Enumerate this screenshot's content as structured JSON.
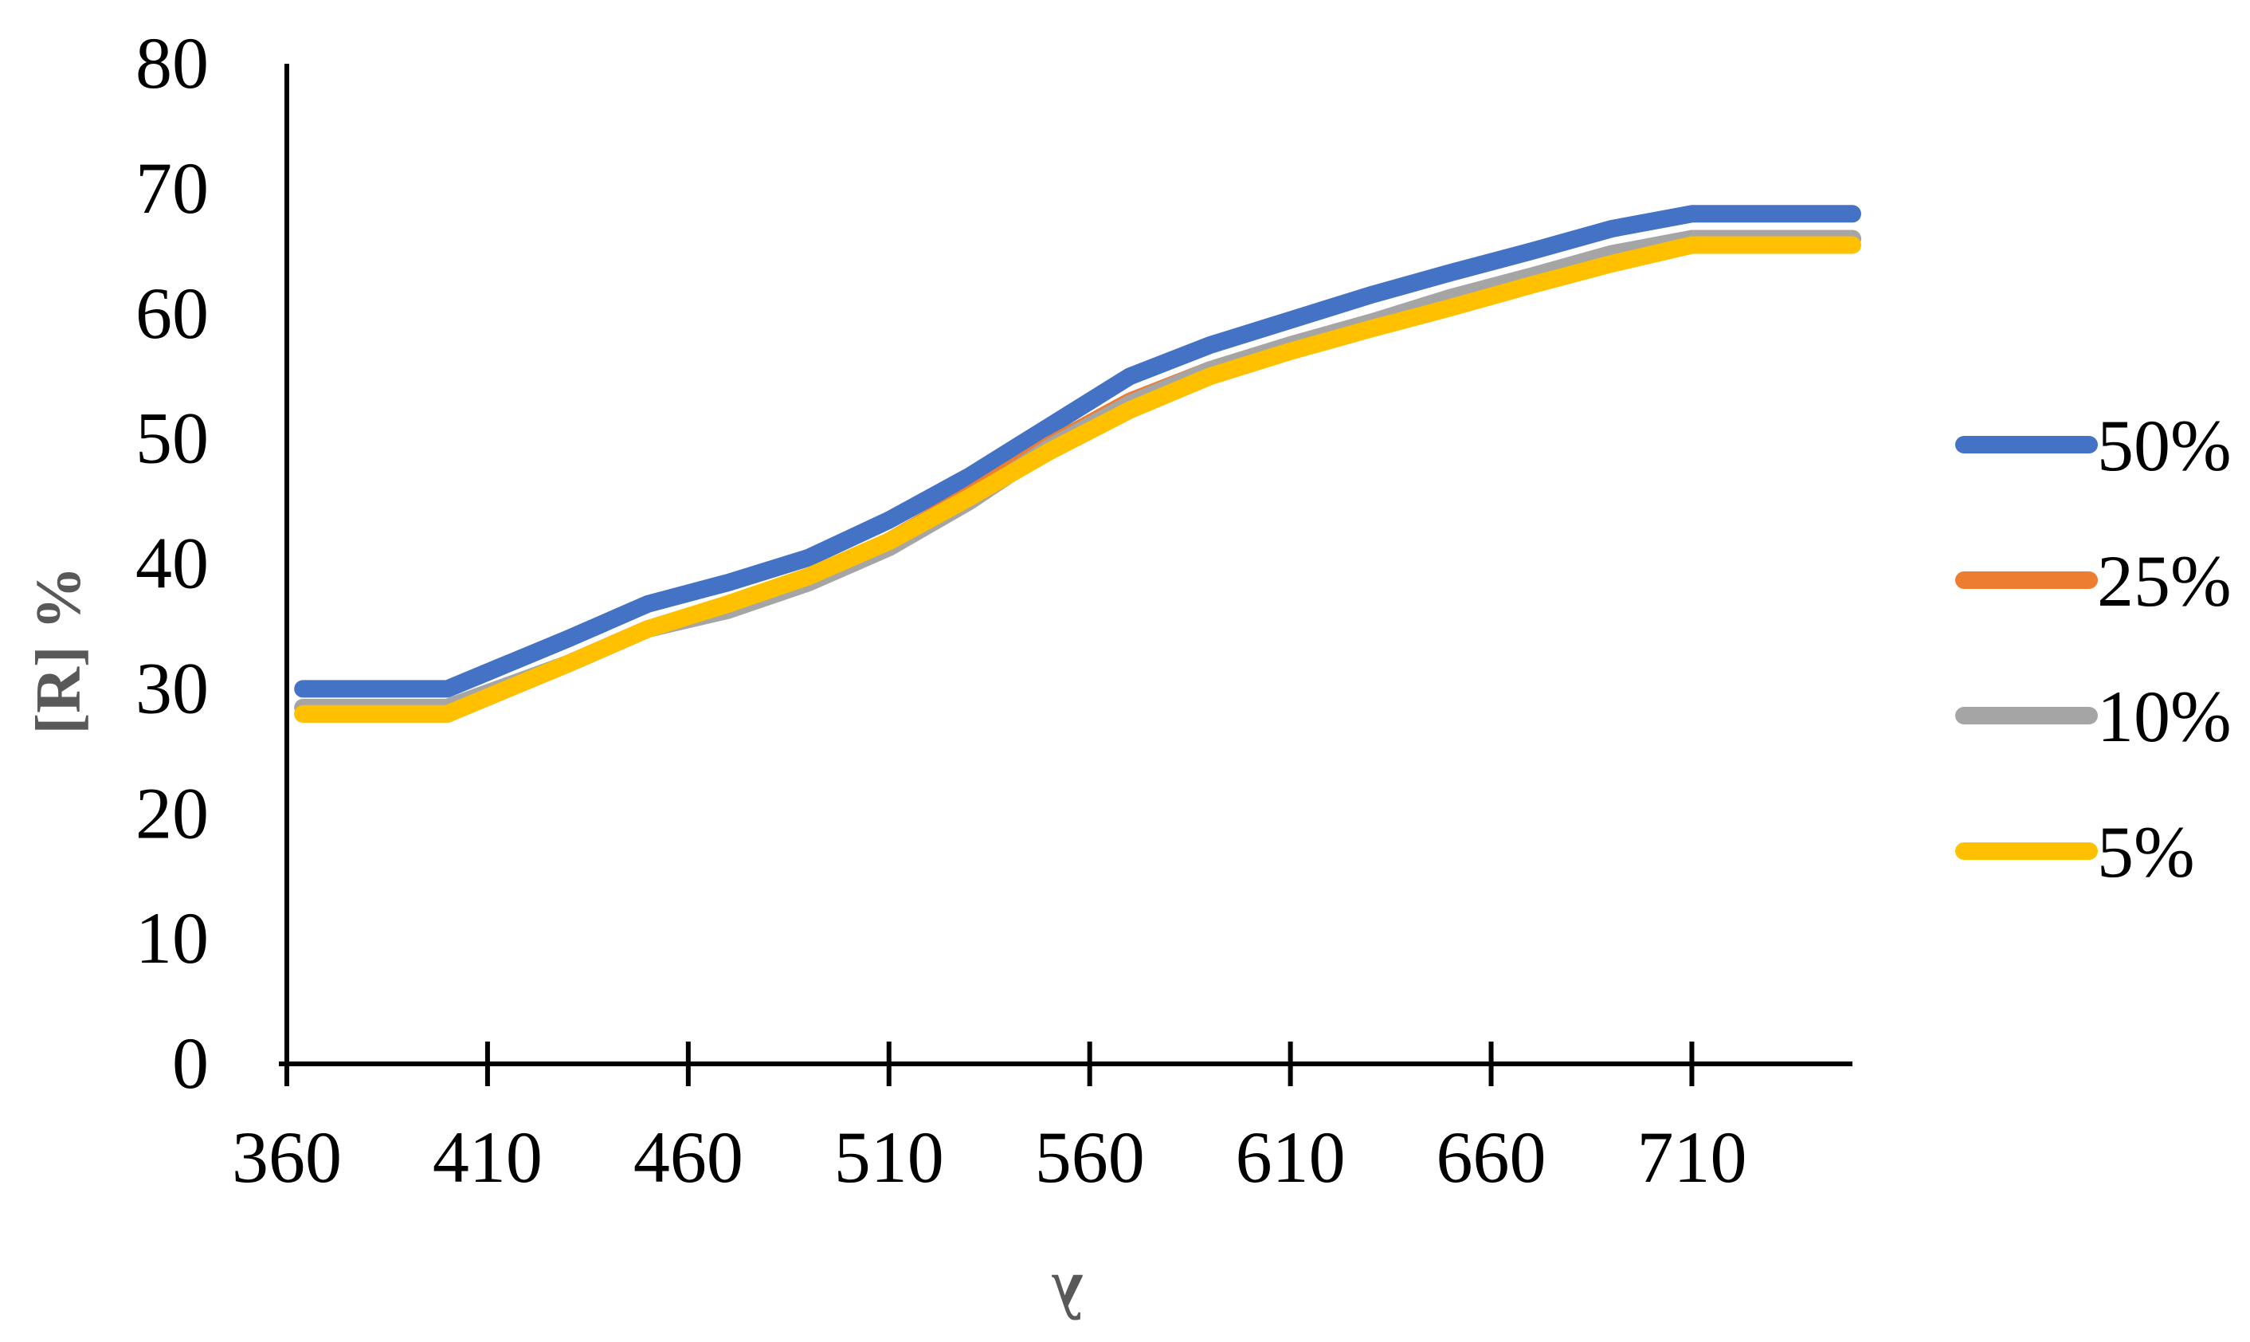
{
  "chart_data": {
    "type": "line",
    "title": "",
    "xlabel": "λ",
    "ylabel": "[R] %",
    "xlim": [
      360,
      750
    ],
    "ylim": [
      0,
      80
    ],
    "x_ticks": [
      360,
      410,
      460,
      510,
      560,
      610,
      660,
      710
    ],
    "y_ticks": [
      0,
      10,
      20,
      30,
      40,
      50,
      60,
      70,
      80
    ],
    "x_tick_labels": [
      "360",
      "410",
      "460",
      "510",
      "560",
      "610",
      "660",
      "710"
    ],
    "y_tick_labels": [
      "0",
      "10",
      "20",
      "30",
      "40",
      "50",
      "60",
      "70",
      "80"
    ],
    "grid": false,
    "legend_position": "right",
    "x": [
      364,
      400,
      430,
      450,
      470,
      490,
      510,
      530,
      550,
      570,
      590,
      610,
      630,
      650,
      670,
      690,
      710,
      750
    ],
    "series": [
      {
        "name": "50%",
        "color": "#4472C4",
        "values": [
          30,
          30,
          34,
          36.8,
          38.5,
          40.5,
          43.5,
          47,
          51,
          55,
          57.5,
          59.5,
          61.5,
          63.3,
          65,
          66.8,
          68,
          68
        ]
      },
      {
        "name": "25%",
        "color": "#ED7D31",
        "values": [
          28,
          28,
          32,
          34.8,
          36.5,
          38.8,
          41.8,
          45.5,
          49.5,
          53,
          55.5,
          57.5,
          59.3,
          61,
          62.8,
          64.5,
          66,
          66
        ]
      },
      {
        "name": "10%",
        "color": "#A5A5A5",
        "values": [
          28.5,
          28.5,
          32,
          34.8,
          36.3,
          38.5,
          41.3,
          45,
          49.3,
          52.8,
          55.5,
          57.5,
          59.3,
          61.3,
          63,
          64.8,
          66,
          66
        ]
      },
      {
        "name": "5%",
        "color": "#FFC000",
        "values": [
          28,
          28,
          32,
          34.8,
          36.8,
          39,
          41.8,
          45.3,
          49,
          52.3,
          55,
          57,
          58.8,
          60.5,
          62.3,
          64,
          65.5,
          65.5
        ]
      }
    ]
  }
}
